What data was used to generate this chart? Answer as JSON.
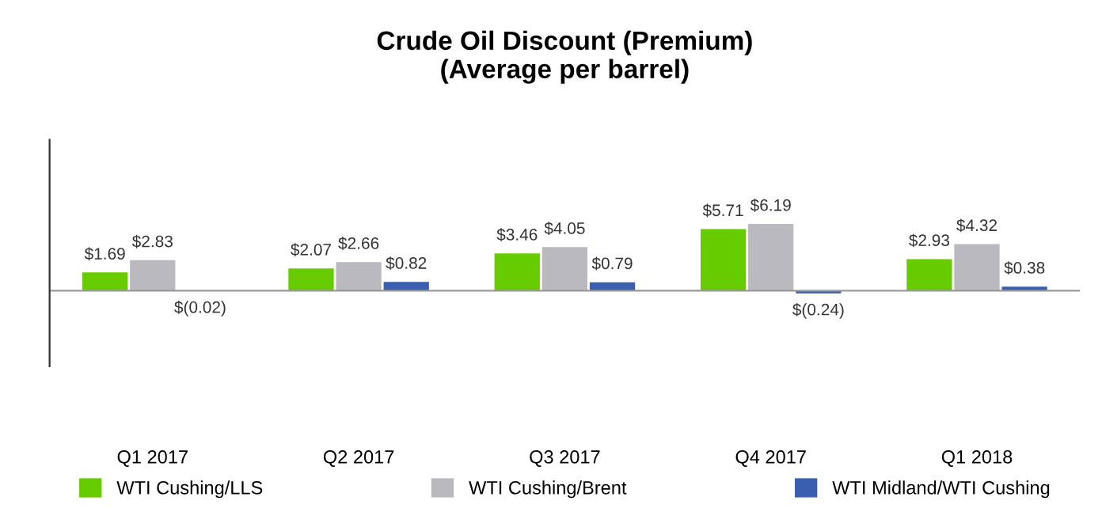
{
  "chart_data": {
    "type": "bar",
    "title": "Crude Oil Discount (Premium)\n(Average per barrel)",
    "categories": [
      "Q1 2017",
      "Q2 2017",
      "Q3 2017",
      "Q4 2017",
      "Q1 2018"
    ],
    "series": [
      {
        "name": "WTI Cushing/LLS",
        "color": "#66cc00",
        "values": [
          1.69,
          2.07,
          3.46,
          5.71,
          2.93
        ],
        "value_labels": [
          "$1.69",
          "$2.07",
          "$3.46",
          "$5.71",
          "$2.93"
        ]
      },
      {
        "name": "WTI Cushing/Brent",
        "color": "#b9b9bf",
        "values": [
          2.83,
          2.66,
          4.05,
          6.19,
          4.32
        ],
        "value_labels": [
          "$2.83",
          "$2.66",
          "$4.05",
          "$6.19",
          "$4.32"
        ]
      },
      {
        "name": "WTI Midland/WTI Cushing",
        "color": "#3a5fb0",
        "values": [
          -0.02,
          0.82,
          0.79,
          -0.24,
          0.38
        ],
        "value_labels": [
          "$(0.02)",
          "$0.82",
          "$0.79",
          "$(0.24)",
          "$0.38"
        ]
      }
    ],
    "ylim": [
      -7,
      14
    ],
    "legend": "bottom",
    "grid": false
  }
}
